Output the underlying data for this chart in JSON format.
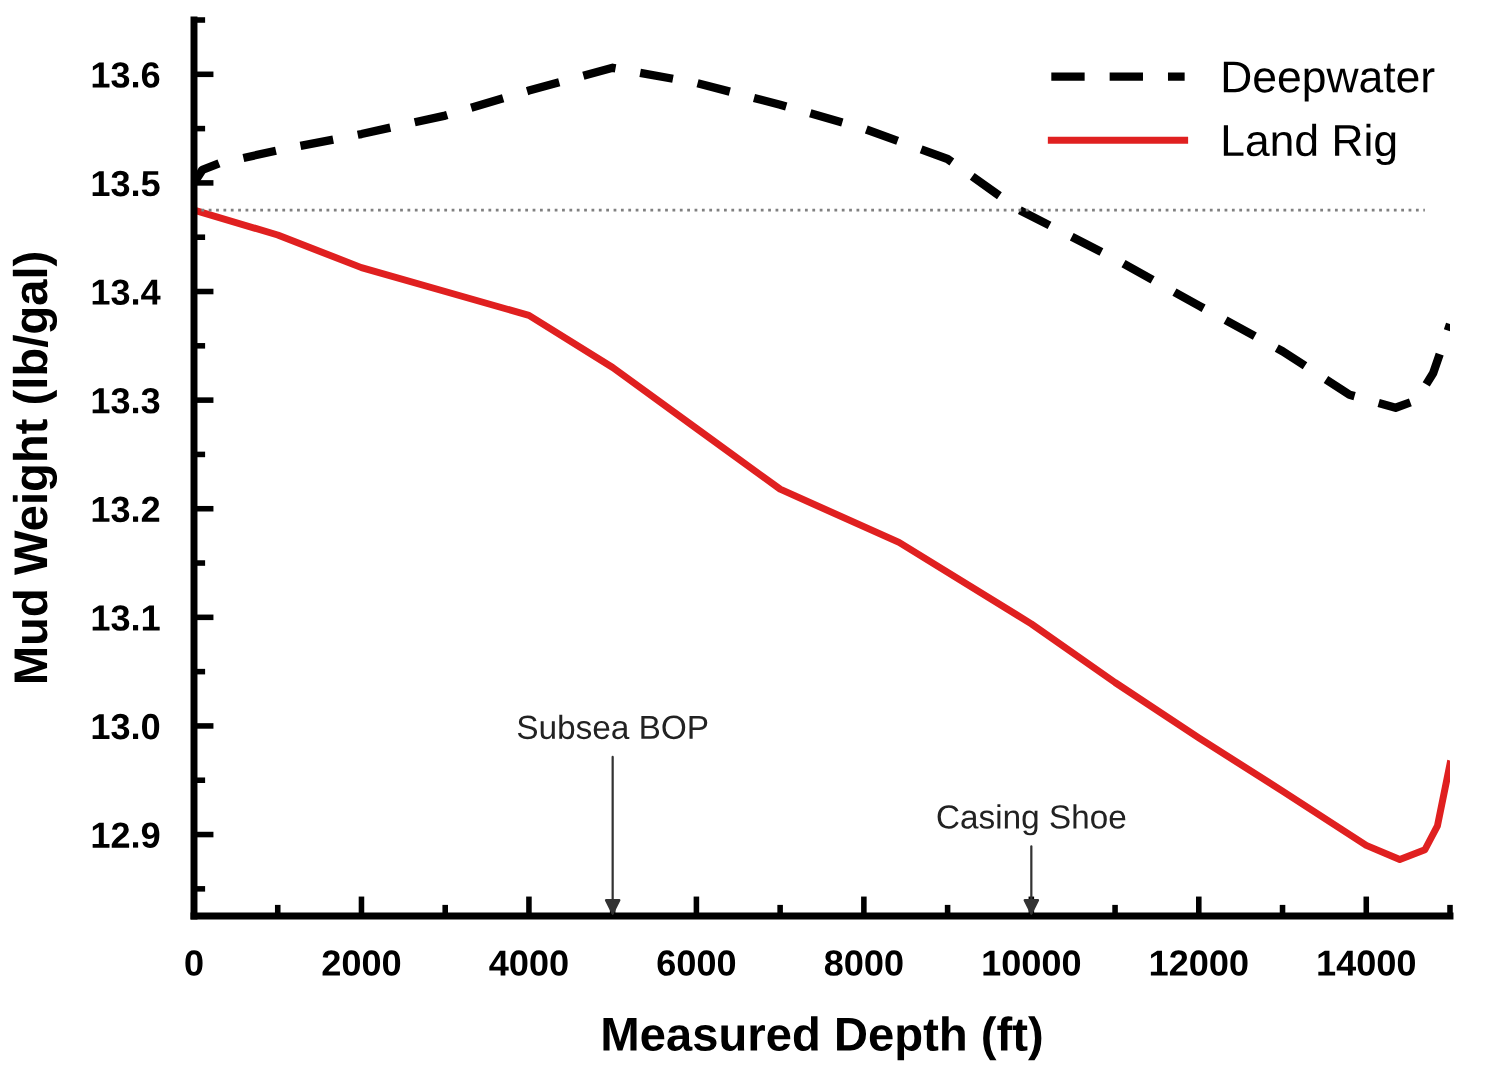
{
  "chart_data": {
    "type": "line",
    "xlabel": "Measured Depth (ft)",
    "ylabel": "Mud Weight (lb/gal)",
    "xlim": [
      0,
      15000
    ],
    "ylim": [
      12.825,
      13.65
    ],
    "xticks": [
      0,
      2000,
      4000,
      6000,
      8000,
      10000,
      12000,
      14000
    ],
    "yticks": [
      12.9,
      {
        "value": 13.0,
        "label": "13.0"
      },
      13.1,
      13.2,
      13.3,
      13.4,
      13.5,
      13.6
    ],
    "grid": false,
    "legend": "top right",
    "series": [
      {
        "name": "Deepwater",
        "color": "#000000",
        "line_style": "dashed",
        "x": [
          0,
          100,
          300,
          1000,
          2000,
          3000,
          4000,
          5000,
          6000,
          7000,
          8000,
          9000,
          9860,
          11000,
          12000,
          13000,
          13800,
          14350,
          14600,
          14800,
          15000
        ],
        "values": [
          13.5,
          13.512,
          13.518,
          13.53,
          13.545,
          13.562,
          13.585,
          13.606,
          13.592,
          13.572,
          13.55,
          13.522,
          13.475,
          13.43,
          13.387,
          13.345,
          13.305,
          13.293,
          13.3,
          13.325,
          13.37
        ]
      },
      {
        "name": "Land Rig",
        "color": "#e02020",
        "line_style": "solid",
        "x": [
          0,
          1000,
          2000,
          3000,
          4000,
          5000,
          6000,
          7000,
          8420,
          10000,
          11000,
          12000,
          13000,
          14000,
          14400,
          14700,
          14850,
          15000
        ],
        "values": [
          13.475,
          13.452,
          13.422,
          13.4,
          13.378,
          13.33,
          13.274,
          13.218,
          13.169,
          13.094,
          13.04,
          12.989,
          12.94,
          12.89,
          12.877,
          12.886,
          12.908,
          12.965
        ]
      }
    ],
    "ref_lines": [
      {
        "axis": "y",
        "value": 13.475,
        "color": "#808080",
        "line_style": "dotted"
      }
    ],
    "annotations": [
      "Subsea BOP",
      "Casing Shoe"
    ]
  }
}
